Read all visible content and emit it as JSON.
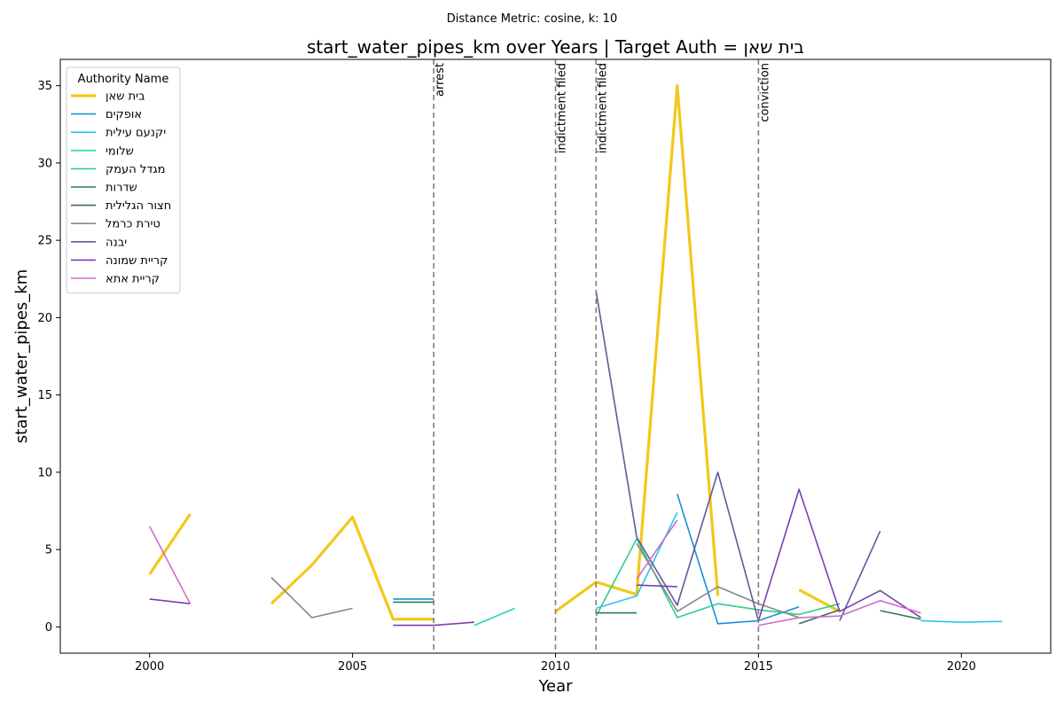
{
  "suptitle": "Distance Metric: cosine, k: 10",
  "chart_data": {
    "type": "line",
    "title": "start_water_pipes_km over Years | Target Auth = בית שאן",
    "xlabel": "Year",
    "ylabel": "start_water_pipes_km",
    "xlim": [
      1997.8,
      2022.2
    ],
    "ylim": [
      -1.7,
      36.7
    ],
    "xticks": [
      2000,
      2005,
      2010,
      2015,
      2020
    ],
    "yticks": [
      0,
      5,
      10,
      15,
      20,
      25,
      30,
      35
    ],
    "grid": false,
    "legend": {
      "title": "Authority Name",
      "placement": "top-left"
    },
    "events": [
      {
        "x": 2007,
        "label": "arrest"
      },
      {
        "x": 2010,
        "label": "indictment filed"
      },
      {
        "x": 2011,
        "label": "indictment filed"
      },
      {
        "x": 2015,
        "label": "conviction"
      }
    ],
    "series": [
      {
        "name": "בית שאן",
        "color": "#f2c81a",
        "target": true,
        "points": [
          [
            2000,
            3.4
          ],
          [
            2001,
            7.3
          ],
          null,
          [
            2003,
            1.5
          ],
          [
            2004,
            4.0
          ],
          [
            2005,
            7.1
          ],
          [
            2006,
            0.5
          ],
          [
            2007,
            0.5
          ],
          null,
          [
            2010,
            1.0
          ],
          [
            2011,
            2.9
          ],
          [
            2012,
            2.1
          ],
          [
            2013,
            35.0
          ],
          [
            2014,
            2.0
          ],
          null,
          [
            2016,
            2.4
          ],
          [
            2017,
            1.0
          ]
        ]
      },
      {
        "name": "אופקים",
        "color": "#1a8fd6",
        "points": [
          [
            2006,
            1.8
          ],
          [
            2007,
            1.8
          ],
          null,
          [
            2013,
            8.6
          ],
          [
            2014,
            0.2
          ],
          [
            2015,
            0.4
          ],
          [
            2016,
            1.3
          ]
        ]
      },
      {
        "name": "יקנעם עילית",
        "color": "#2ac3eb",
        "points": [
          [
            2011,
            1.2
          ],
          [
            2012,
            2.0
          ],
          [
            2013,
            7.4
          ],
          null,
          [
            2019,
            0.4
          ],
          [
            2020,
            0.3
          ],
          [
            2021,
            0.35
          ]
        ]
      },
      {
        "name": "שלומי",
        "color": "#27d6b4",
        "points": [
          [
            2008,
            0.1
          ],
          [
            2009,
            1.2
          ]
        ]
      },
      {
        "name": "מגדל העמק",
        "color": "#2fcf8a",
        "points": [
          [
            2011,
            0.7
          ],
          [
            2012,
            5.7
          ],
          [
            2013,
            0.6
          ],
          [
            2014,
            1.5
          ],
          [
            2015,
            1.1
          ],
          [
            2016,
            0.8
          ],
          [
            2017,
            1.5
          ]
        ]
      },
      {
        "name": "שדרות",
        "color": "#2b7a5a",
        "points": [
          [
            2006,
            1.6
          ],
          [
            2007,
            1.6
          ],
          null,
          [
            2011,
            0.9
          ],
          [
            2012,
            0.9
          ],
          null,
          [
            2018,
            1.05
          ],
          [
            2019,
            0.5
          ]
        ]
      },
      {
        "name": "חצור הגלילית",
        "color": "#3d6a55",
        "points": [
          [
            2016,
            0.2
          ],
          [
            2017,
            1.1
          ]
        ]
      },
      {
        "name": "טירת כרמל",
        "color": "#808a86",
        "points": [
          [
            2003,
            3.2
          ],
          [
            2004,
            0.6
          ],
          [
            2005,
            1.2
          ],
          null,
          [
            2012,
            5.4
          ],
          [
            2013,
            1.0
          ],
          [
            2014,
            2.6
          ],
          [
            2015,
            1.5
          ],
          [
            2016,
            0.6
          ]
        ]
      },
      {
        "name": "יבנה",
        "color": "#5e5a99",
        "points": [
          [
            2011,
            21.7
          ],
          [
            2012,
            5.8
          ],
          [
            2013,
            1.4
          ],
          [
            2014,
            10.0
          ],
          [
            2015,
            0.4
          ],
          null,
          [
            2017,
            0.4
          ],
          [
            2018,
            6.2
          ]
        ]
      },
      {
        "name": "קריית שמונה",
        "color": "#7b3fad",
        "points": [
          [
            2000,
            1.8
          ],
          [
            2001,
            1.5
          ],
          null,
          [
            2006,
            0.1
          ],
          [
            2007,
            0.1
          ],
          [
            2008,
            0.3
          ],
          null,
          [
            2012,
            2.7
          ],
          [
            2013,
            2.6
          ],
          null,
          [
            2015,
            0.4
          ],
          [
            2016,
            8.9
          ],
          [
            2017,
            1.0
          ],
          [
            2018,
            2.35
          ],
          [
            2019,
            0.6
          ]
        ]
      },
      {
        "name": "קריית אתא",
        "color": "#cf6ad0",
        "points": [
          [
            2000,
            6.5
          ],
          [
            2001,
            1.5
          ],
          null,
          [
            2012,
            3.1
          ],
          [
            2013,
            6.9
          ],
          null,
          [
            2015,
            0.1
          ],
          [
            2016,
            0.6
          ],
          [
            2017,
            0.7
          ],
          [
            2018,
            1.7
          ],
          [
            2019,
            0.9
          ]
        ]
      }
    ]
  }
}
